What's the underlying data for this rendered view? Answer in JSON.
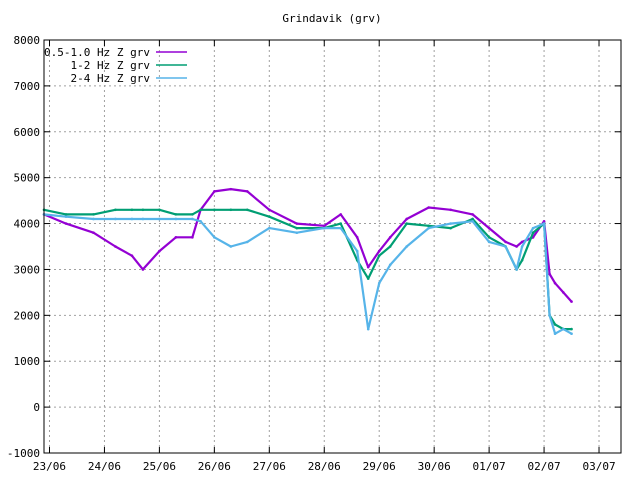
{
  "chart_data": {
    "type": "line",
    "title": "Grindavik (grv)",
    "xlabel": "",
    "ylabel": "",
    "x_ticks": [
      "23/06",
      "24/06",
      "25/06",
      "26/06",
      "27/06",
      "28/06",
      "29/06",
      "30/06",
      "01/07",
      "02/07",
      "03/07"
    ],
    "xlim": [
      -0.1,
      10.4
    ],
    "ylim": [
      -1000,
      8000
    ],
    "y_ticks": [
      -1000,
      0,
      1000,
      2000,
      3000,
      4000,
      5000,
      6000,
      7000,
      8000
    ],
    "grid": true,
    "legend_position": "top-left",
    "series": [
      {
        "name": "0.5-1.0 Hz Z grv",
        "color": "#9400d3",
        "x": [
          -0.1,
          0.3,
          0.8,
          1.2,
          1.5,
          1.7,
          2.0,
          2.3,
          2.6,
          2.75,
          3.0,
          3.3,
          3.6,
          4.0,
          4.5,
          5.0,
          5.3,
          5.6,
          5.8,
          6.0,
          6.2,
          6.5,
          6.9,
          7.3,
          7.7,
          8.0,
          8.3,
          8.5,
          8.6,
          8.8,
          9.0,
          9.1,
          9.2,
          9.35,
          9.5
        ],
        "y": [
          4200,
          4000,
          3800,
          3500,
          3300,
          3000,
          3400,
          3700,
          3700,
          4300,
          4700,
          4750,
          4700,
          4300,
          4000,
          3950,
          4200,
          3700,
          3050,
          3400,
          3700,
          4100,
          4350,
          4300,
          4200,
          3900,
          3600,
          3500,
          3600,
          3700,
          4050,
          2900,
          2700,
          2500,
          2300
        ]
      },
      {
        "name": "1-2 Hz Z grv",
        "color": "#009e73",
        "x": [
          -0.1,
          0.3,
          0.8,
          1.2,
          1.5,
          1.7,
          2.0,
          2.3,
          2.6,
          2.75,
          3.0,
          3.3,
          3.6,
          4.0,
          4.5,
          5.0,
          5.3,
          5.6,
          5.8,
          6.0,
          6.2,
          6.5,
          6.9,
          7.3,
          7.7,
          8.0,
          8.3,
          8.5,
          8.6,
          8.8,
          9.0,
          9.1,
          9.2,
          9.35,
          9.5
        ],
        "y": [
          4300,
          4200,
          4200,
          4300,
          4300,
          4300,
          4300,
          4200,
          4200,
          4300,
          4300,
          4300,
          4300,
          4150,
          3900,
          3900,
          4000,
          3200,
          2800,
          3300,
          3500,
          4000,
          3950,
          3900,
          4100,
          3700,
          3500,
          3000,
          3200,
          3800,
          4000,
          2000,
          1800,
          1700,
          1700
        ]
      },
      {
        "name": "2-4 Hz Z grv",
        "color": "#56b4e9",
        "x": [
          -0.1,
          0.3,
          0.8,
          1.2,
          1.5,
          1.7,
          2.0,
          2.3,
          2.6,
          2.75,
          3.0,
          3.3,
          3.6,
          4.0,
          4.5,
          5.0,
          5.3,
          5.6,
          5.8,
          6.0,
          6.2,
          6.5,
          6.9,
          7.3,
          7.7,
          8.0,
          8.3,
          8.5,
          8.6,
          8.8,
          9.0,
          9.1,
          9.2,
          9.35,
          9.5
        ],
        "y": [
          4200,
          4150,
          4100,
          4100,
          4100,
          4100,
          4100,
          4100,
          4100,
          4050,
          3700,
          3500,
          3600,
          3900,
          3800,
          3900,
          3900,
          3400,
          1700,
          2700,
          3100,
          3500,
          3900,
          4000,
          4050,
          3600,
          3500,
          3000,
          3500,
          3900,
          4000,
          2000,
          1600,
          1700,
          1600
        ]
      }
    ]
  }
}
